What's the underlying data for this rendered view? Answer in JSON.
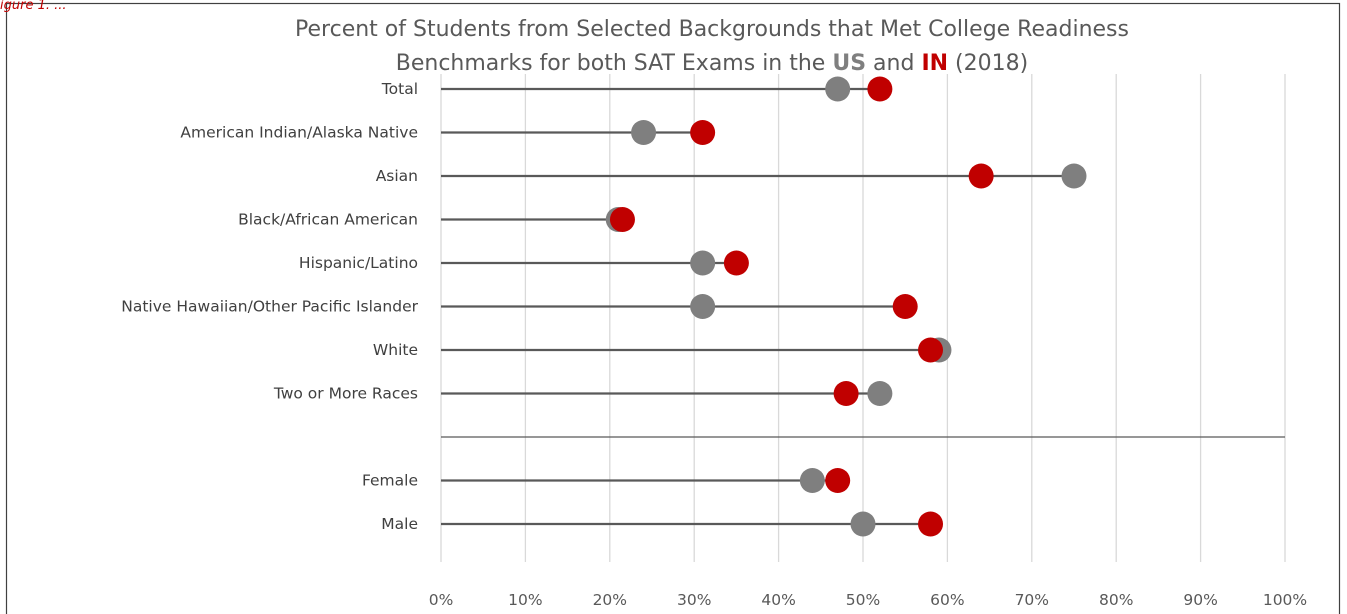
{
  "header_fragment": "igure 1. ...",
  "chart_data": {
    "type": "dumbbell",
    "title_line1": "Percent of Students from Selected Backgrounds that Met College Readiness",
    "title_line2_prefix": "Benchmarks for both SAT Exams in the ",
    "title_us": "US",
    "title_and": " and ",
    "title_in": "IN",
    "title_suffix": " (2018)",
    "categories": [
      "Total",
      "American Indian/Alaska Native",
      "Asian",
      "Black/African American",
      "Hispanic/Latino",
      "Native Hawaiian/Other Pacific Islander",
      "White",
      "Two or More Races",
      "",
      "Female",
      "Male"
    ],
    "series": [
      {
        "name": "US",
        "color": "#7f7f7f",
        "values": [
          47,
          24,
          75,
          21,
          31,
          31,
          59,
          52,
          null,
          44,
          50
        ]
      },
      {
        "name": "IN",
        "color": "#c00000",
        "values": [
          52,
          31,
          64,
          21.5,
          35,
          55,
          58,
          48,
          null,
          47,
          58
        ]
      }
    ],
    "xlim": [
      0,
      100
    ],
    "x_ticks": [
      "0%",
      "10%",
      "20%",
      "30%",
      "40%",
      "50%",
      "60%",
      "70%",
      "80%",
      "90%",
      "100%"
    ],
    "grid": "vertical",
    "separator_after": "Two or More Races",
    "colors": {
      "gridline": "#d9d9d9",
      "stem": "#595959",
      "text": "#595959"
    }
  }
}
